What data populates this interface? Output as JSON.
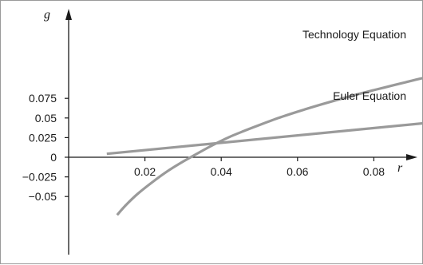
{
  "chart_data": {
    "type": "line",
    "xlabel": "r",
    "ylabel": "g",
    "xlim": [
      0,
      0.095
    ],
    "ylim": [
      -0.075,
      0.1
    ],
    "x_ticks": [
      {
        "value": 0.02,
        "label": "0.02"
      },
      {
        "value": 0.04,
        "label": "0.04"
      },
      {
        "value": 0.06,
        "label": "0.06"
      },
      {
        "value": 0.08,
        "label": "0.08"
      }
    ],
    "y_ticks": [
      {
        "value": 0.075,
        "label": "0.075"
      },
      {
        "value": 0.05,
        "label": "0.05"
      },
      {
        "value": 0.025,
        "label": "0.025"
      },
      {
        "value": 0,
        "label": "0"
      },
      {
        "value": -0.025,
        "label": "−0.025"
      },
      {
        "value": -0.05,
        "label": "−0.05"
      }
    ],
    "grid": false,
    "line_color": "#9a9a9a",
    "series": [
      {
        "name": "Technology Equation",
        "x": [
          0.0127,
          0.015,
          0.018,
          0.022,
          0.026,
          0.03,
          0.034,
          0.038,
          0.042,
          0.046,
          0.05,
          0.055,
          0.06,
          0.065,
          0.07,
          0.075,
          0.08,
          0.085,
          0.09,
          0.094
        ],
        "y": [
          -0.0735,
          -0.061,
          -0.047,
          -0.0315,
          -0.0175,
          -0.0055,
          0.0055,
          0.016,
          0.0255,
          0.0335,
          0.041,
          0.05,
          0.058,
          0.0655,
          0.0725,
          0.0792,
          0.0855,
          0.0915,
          0.0975,
          0.1022
        ]
      },
      {
        "name": "Euler Equation",
        "x": [
          0.01,
          0.094
        ],
        "y": [
          0.0044,
          0.0437
        ]
      }
    ]
  }
}
